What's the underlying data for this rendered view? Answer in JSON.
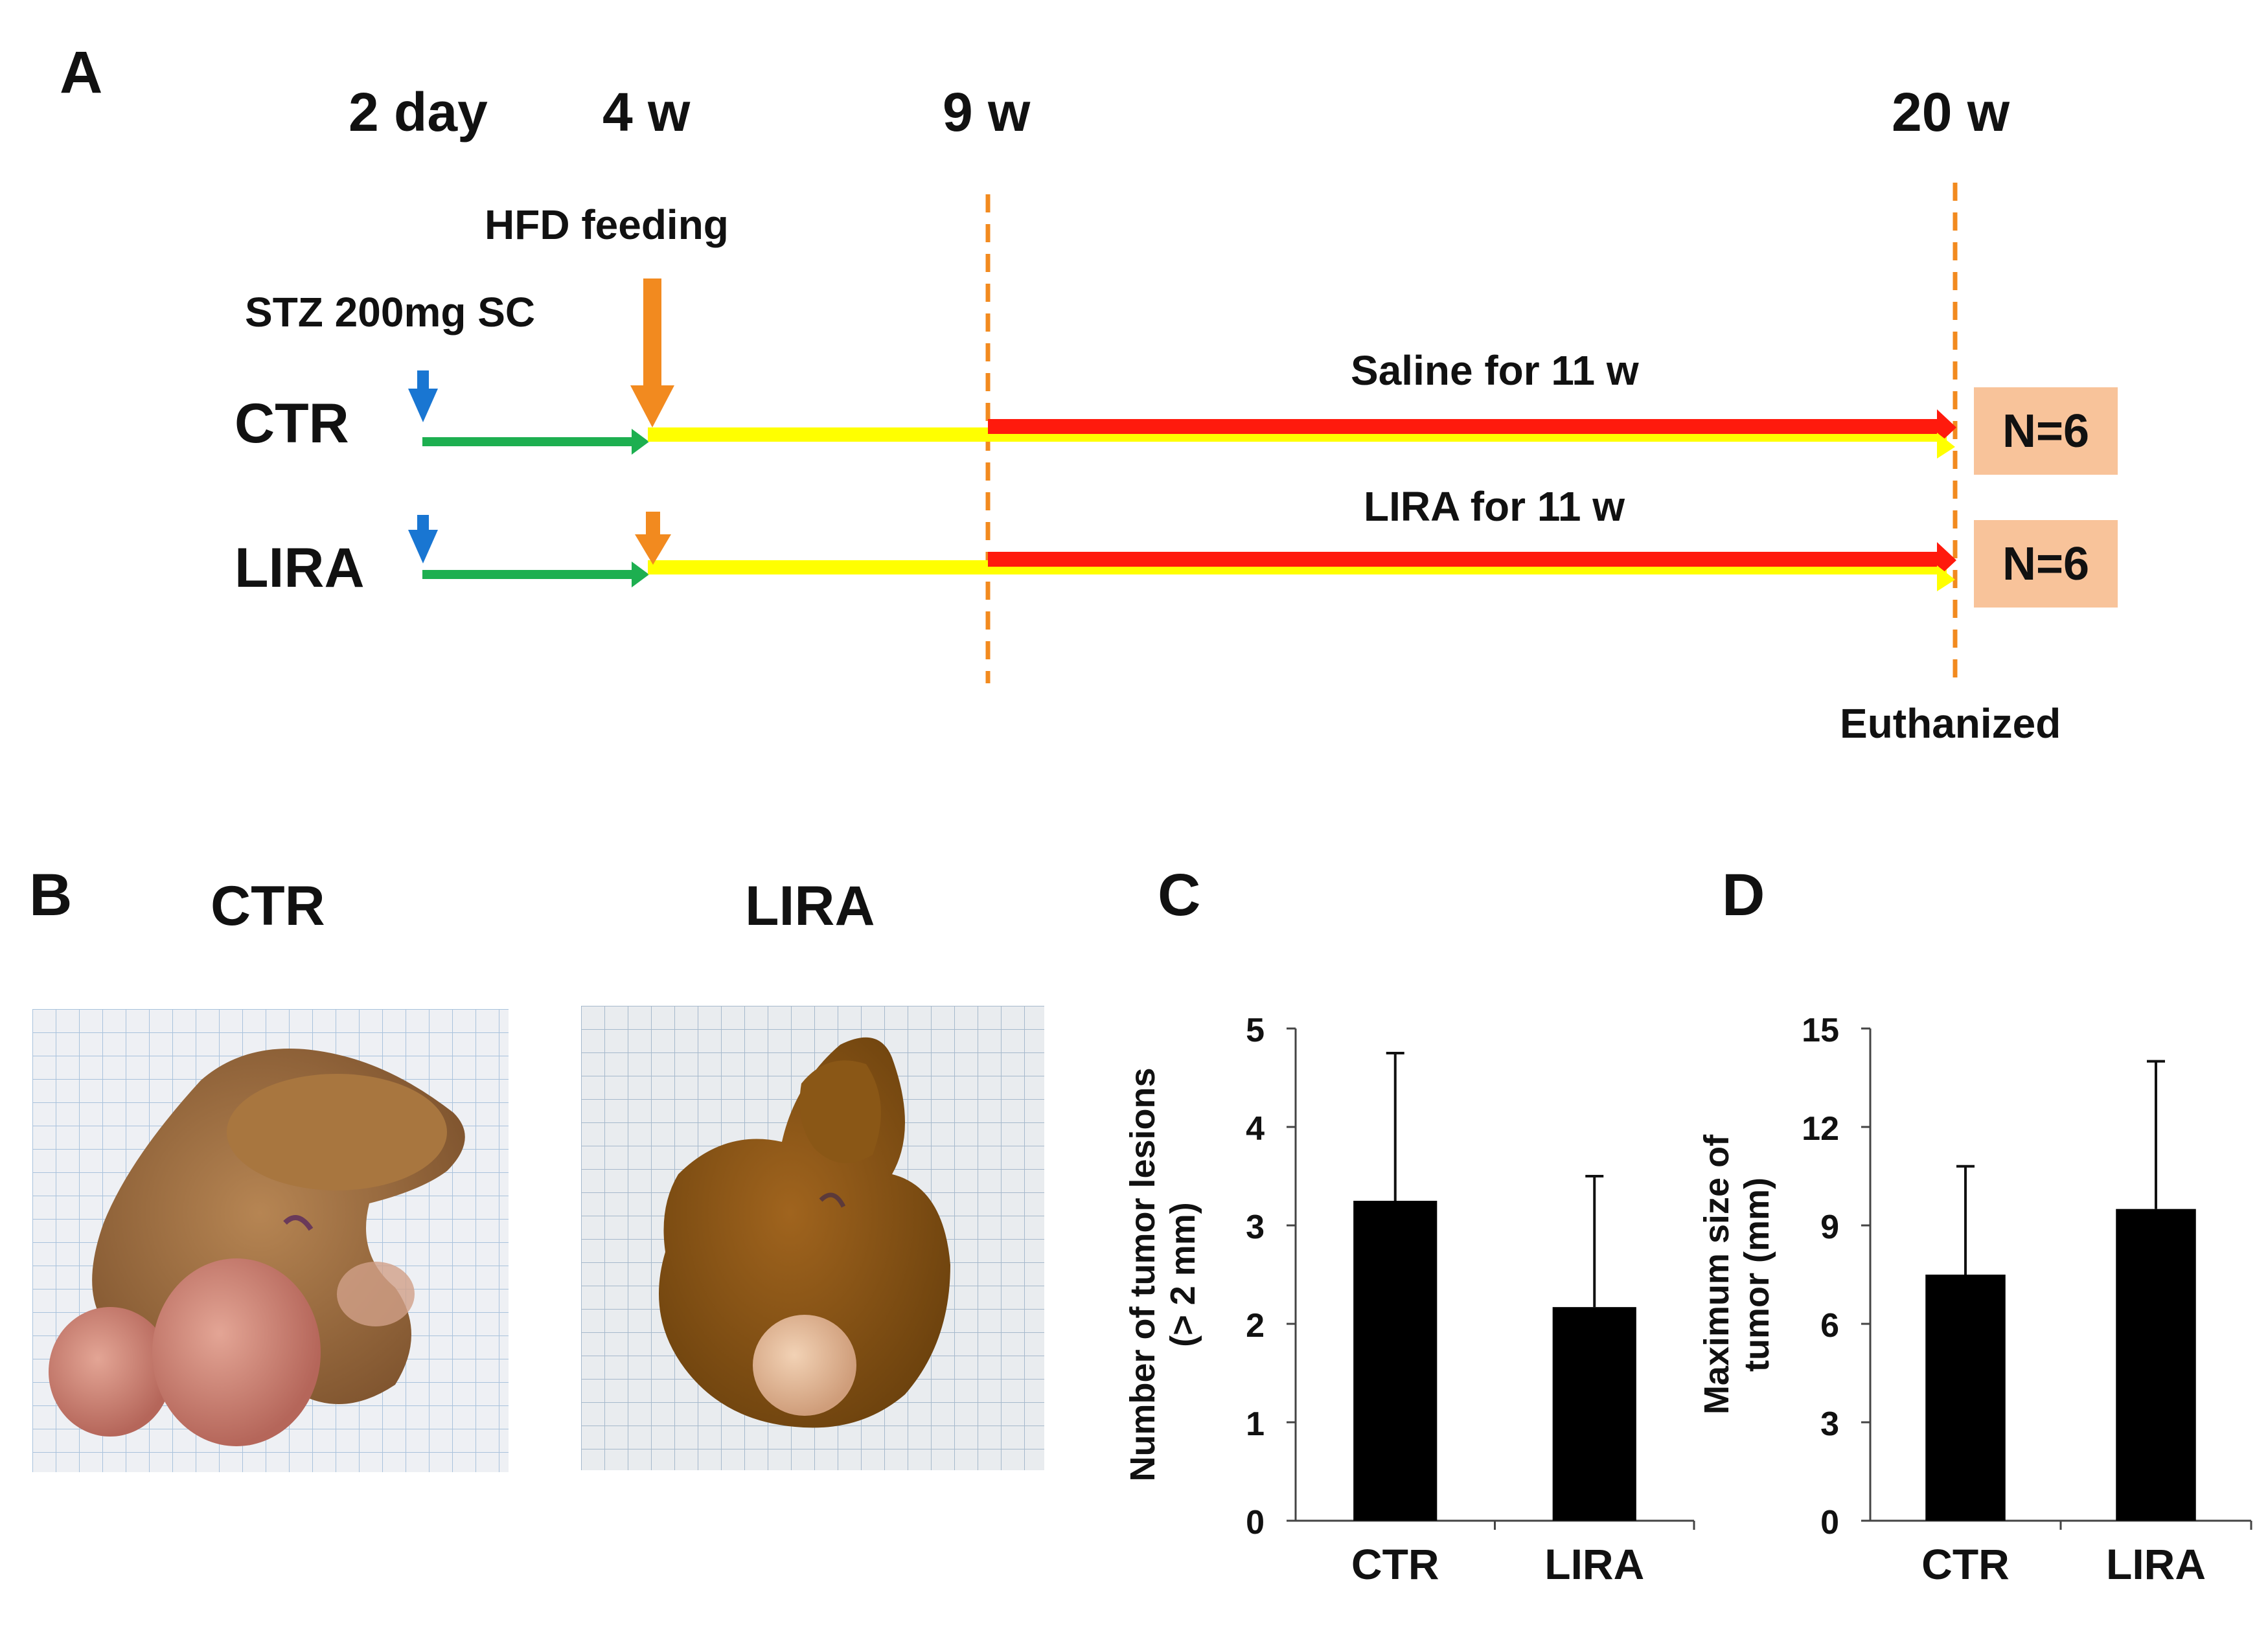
{
  "panels": {
    "a": "A",
    "b": "B",
    "c": "C",
    "d": "D"
  },
  "timeline": {
    "time_labels": [
      "2 day",
      "4 w",
      "9 w",
      "20 w"
    ],
    "hfd_label": "HFD feeding",
    "stz_label": "STZ 200mg SC",
    "groups": [
      {
        "name": "CTR",
        "treatment": "Saline for 11 w",
        "n": "N=6"
      },
      {
        "name": "LIRA",
        "treatment": "LIRA for 11 w",
        "n": "N=6"
      }
    ],
    "end_label": "Euthanized",
    "colors": {
      "green": "#1daf50",
      "yellow": "#ffff00",
      "red": "#ff1a0d",
      "orange": "#f28a1f",
      "blue": "#1976d2",
      "nbox": "#f8c39a"
    }
  },
  "photos": {
    "ctr_title": "CTR",
    "lira_title": "LIRA"
  },
  "chart_data": [
    {
      "type": "bar",
      "panel": "C",
      "categories": [
        "CTR",
        "LIRA"
      ],
      "values": [
        3.25,
        2.17
      ],
      "errors": [
        1.5,
        1.33
      ],
      "ylabel": "Number of tumor lesions (> 2 mm)",
      "ylabel_lines": [
        "Number of tumor lesions",
        "(> 2 mm)"
      ],
      "ylim": [
        0,
        5
      ],
      "yticks": [
        0,
        1,
        2,
        3,
        4,
        5
      ],
      "color": "#000000"
    },
    {
      "type": "bar",
      "panel": "D",
      "categories": [
        "CTR",
        "LIRA"
      ],
      "values": [
        7.5,
        9.5
      ],
      "errors": [
        3.3,
        4.5
      ],
      "ylabel": "Maximum size of tumor (mm)",
      "ylabel_lines": [
        "Maximum size of",
        "tumor (mm)"
      ],
      "ylim": [
        0,
        15
      ],
      "yticks": [
        0,
        3,
        6,
        9,
        12,
        15
      ],
      "color": "#000000"
    }
  ]
}
